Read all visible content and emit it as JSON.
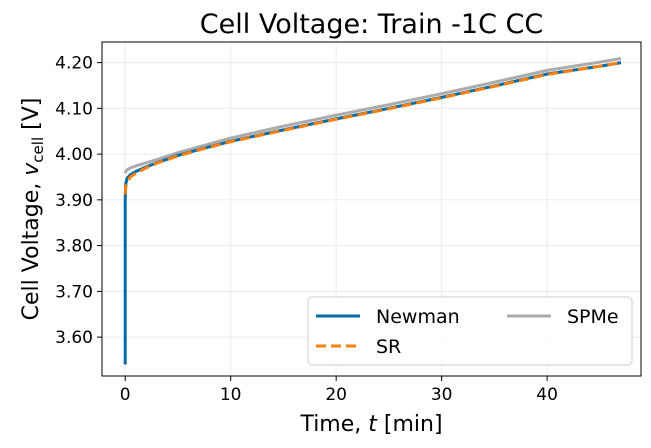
{
  "chart_data": {
    "type": "line",
    "title": "Cell Voltage: Train -1C CC",
    "xlabel": {
      "prefix": "Time, ",
      "var": "t",
      "suffix": " [min]"
    },
    "ylabel": {
      "prefix": "Cell Voltage, ",
      "var": "v",
      "sub": "cell",
      "suffix": " [V]"
    },
    "xlim": [
      -2.2,
      48.9
    ],
    "ylim": [
      3.515,
      4.245
    ],
    "xticks": [
      0,
      10,
      20,
      30,
      40
    ],
    "xtick_labels": [
      "0",
      "10",
      "20",
      "30",
      "40"
    ],
    "yticks": [
      3.6,
      3.7,
      3.8,
      3.9,
      4.0,
      4.1,
      4.2
    ],
    "ytick_labels": [
      "3.60",
      "3.70",
      "3.80",
      "3.90",
      "4.00",
      "4.10",
      "4.20"
    ],
    "grid": true,
    "legend_position": "lower-right",
    "series": [
      {
        "name": "Newman",
        "color": "#006ba4",
        "style": "solid",
        "x": [
          0,
          0,
          0.05,
          0.2,
          0.5,
          1,
          2,
          3,
          5,
          7,
          10,
          15,
          20,
          25,
          30,
          35,
          40,
          45,
          47
        ],
        "y": [
          3.54,
          3.9,
          3.935,
          3.948,
          3.955,
          3.962,
          3.972,
          3.981,
          3.997,
          4.01,
          4.028,
          4.053,
          4.077,
          4.1,
          4.124,
          4.149,
          4.175,
          4.192,
          4.2
        ]
      },
      {
        "name": "SR",
        "color": "#ff800e",
        "style": "dashed",
        "x": [
          0,
          0.05,
          0.2,
          0.5,
          1,
          2,
          3,
          5,
          7,
          10,
          15,
          20,
          25,
          30,
          35,
          40,
          45,
          47
        ],
        "y": [
          3.912,
          3.928,
          3.94,
          3.95,
          3.958,
          3.97,
          3.98,
          3.996,
          4.009,
          4.027,
          4.052,
          4.076,
          4.099,
          4.123,
          4.148,
          4.174,
          4.192,
          4.2
        ]
      },
      {
        "name": "SPMe",
        "color": "#ababab",
        "style": "solid",
        "x": [
          0,
          0.05,
          0.2,
          0.5,
          1,
          2,
          3,
          5,
          7,
          10,
          15,
          20,
          25,
          30,
          35,
          40,
          45,
          47
        ],
        "y": [
          3.958,
          3.962,
          3.966,
          3.97,
          3.974,
          3.981,
          3.988,
          4.003,
          4.016,
          4.035,
          4.061,
          4.085,
          4.108,
          4.132,
          4.157,
          4.183,
          4.201,
          4.209
        ]
      }
    ]
  }
}
